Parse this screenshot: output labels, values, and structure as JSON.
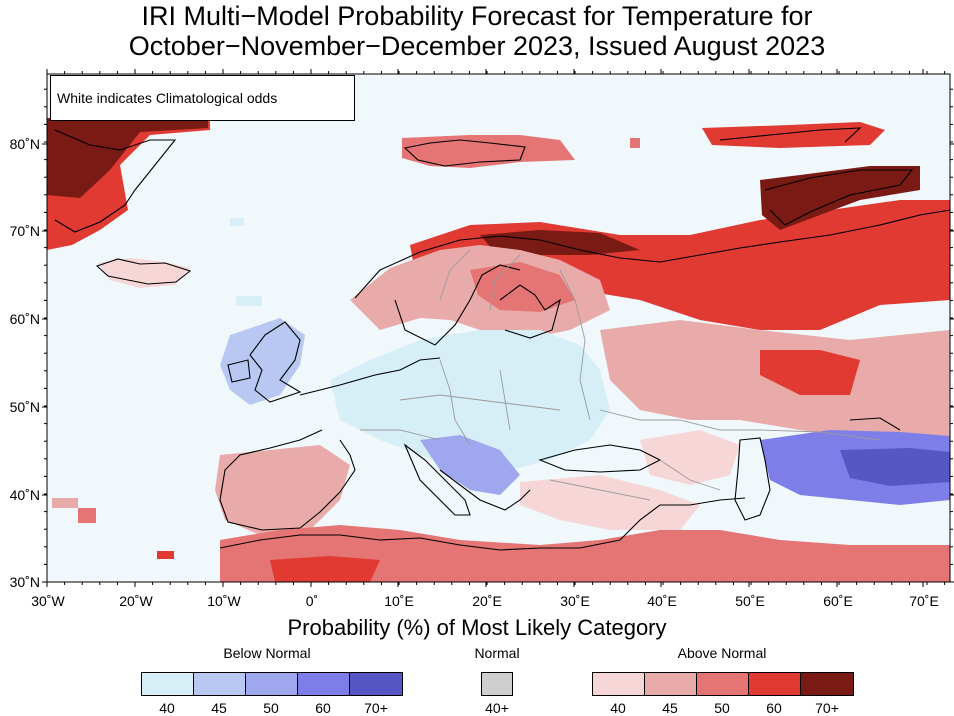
{
  "title": {
    "line1": "IRI Multi−Model Probability Forecast for Temperature for",
    "line2": "October−November−December 2023, Issued August 2023"
  },
  "map": {
    "note": "White indicates Climatological odds",
    "lat_labels": [
      "80˚N",
      "70˚N",
      "60˚N",
      "50˚N",
      "40˚N",
      "30˚N"
    ],
    "lon_labels": [
      "30˚W",
      "20˚W",
      "10˚W",
      "0˚",
      "10˚E",
      "20˚E",
      "30˚E",
      "40˚E",
      "50˚E",
      "60˚E",
      "70˚E"
    ],
    "colors": {
      "ocean": "#f0f8fc",
      "land": "#f4f9fb",
      "coast": "#000000",
      "border": "#9a9a9a"
    }
  },
  "legend": {
    "title": "Probability (%) of Most Likely Category",
    "below": {
      "label": "Below Normal",
      "ticks": [
        "40",
        "45",
        "50",
        "60",
        "70+"
      ],
      "colors": [
        "#d6eef6",
        "#b8c8f2",
        "#9fa8ee",
        "#7e7ee8",
        "#5656c4"
      ]
    },
    "normal": {
      "label": "Normal",
      "ticks": [
        "40+"
      ],
      "colors": [
        "#cfcfcf"
      ]
    },
    "above": {
      "label": "Above Normal",
      "ticks": [
        "40",
        "45",
        "50",
        "60",
        "70+"
      ],
      "colors": [
        "#f6d6d6",
        "#e9aaaa",
        "#e57474",
        "#e03a32",
        "#7a1a14"
      ]
    }
  }
}
